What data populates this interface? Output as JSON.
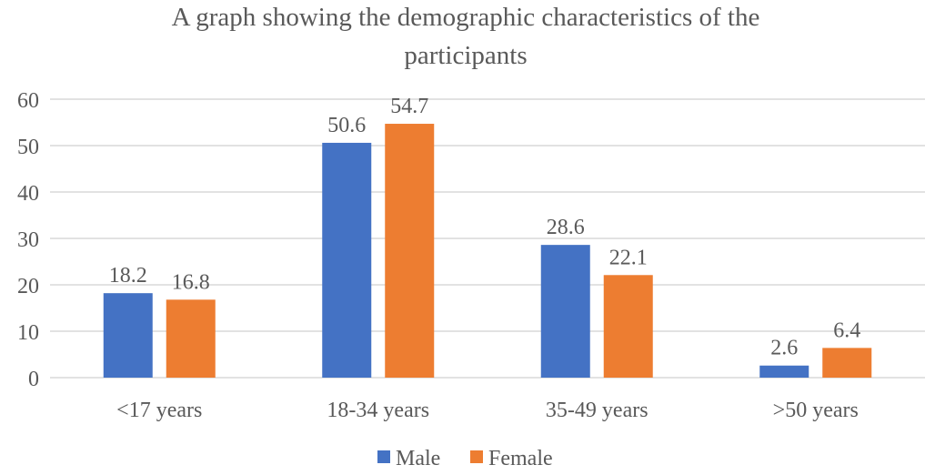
{
  "chart_data": {
    "type": "bar",
    "title_lines": [
      "A graph showing the demographic characteristics of the",
      "participants"
    ],
    "categories": [
      "<17 years",
      "18-34 years",
      "35-49 years",
      ">50 years"
    ],
    "series": [
      {
        "name": "Male",
        "color": "#4472C4",
        "values": [
          18.2,
          50.6,
          28.6,
          2.6
        ]
      },
      {
        "name": "Female",
        "color": "#ED7D31",
        "values": [
          16.8,
          54.7,
          22.1,
          6.4
        ]
      }
    ],
    "data_labels": [
      [
        "18.2",
        "50.6",
        "28.6",
        "2.6"
      ],
      [
        "16.8",
        "54.7",
        "22.1",
        "6.4"
      ]
    ],
    "yticks": [
      "0",
      "10",
      "20",
      "30",
      "40",
      "50",
      "60"
    ],
    "ylim": [
      0,
      60
    ],
    "xlabel": "",
    "ylabel": "",
    "grid": true,
    "legend": "bottom"
  }
}
